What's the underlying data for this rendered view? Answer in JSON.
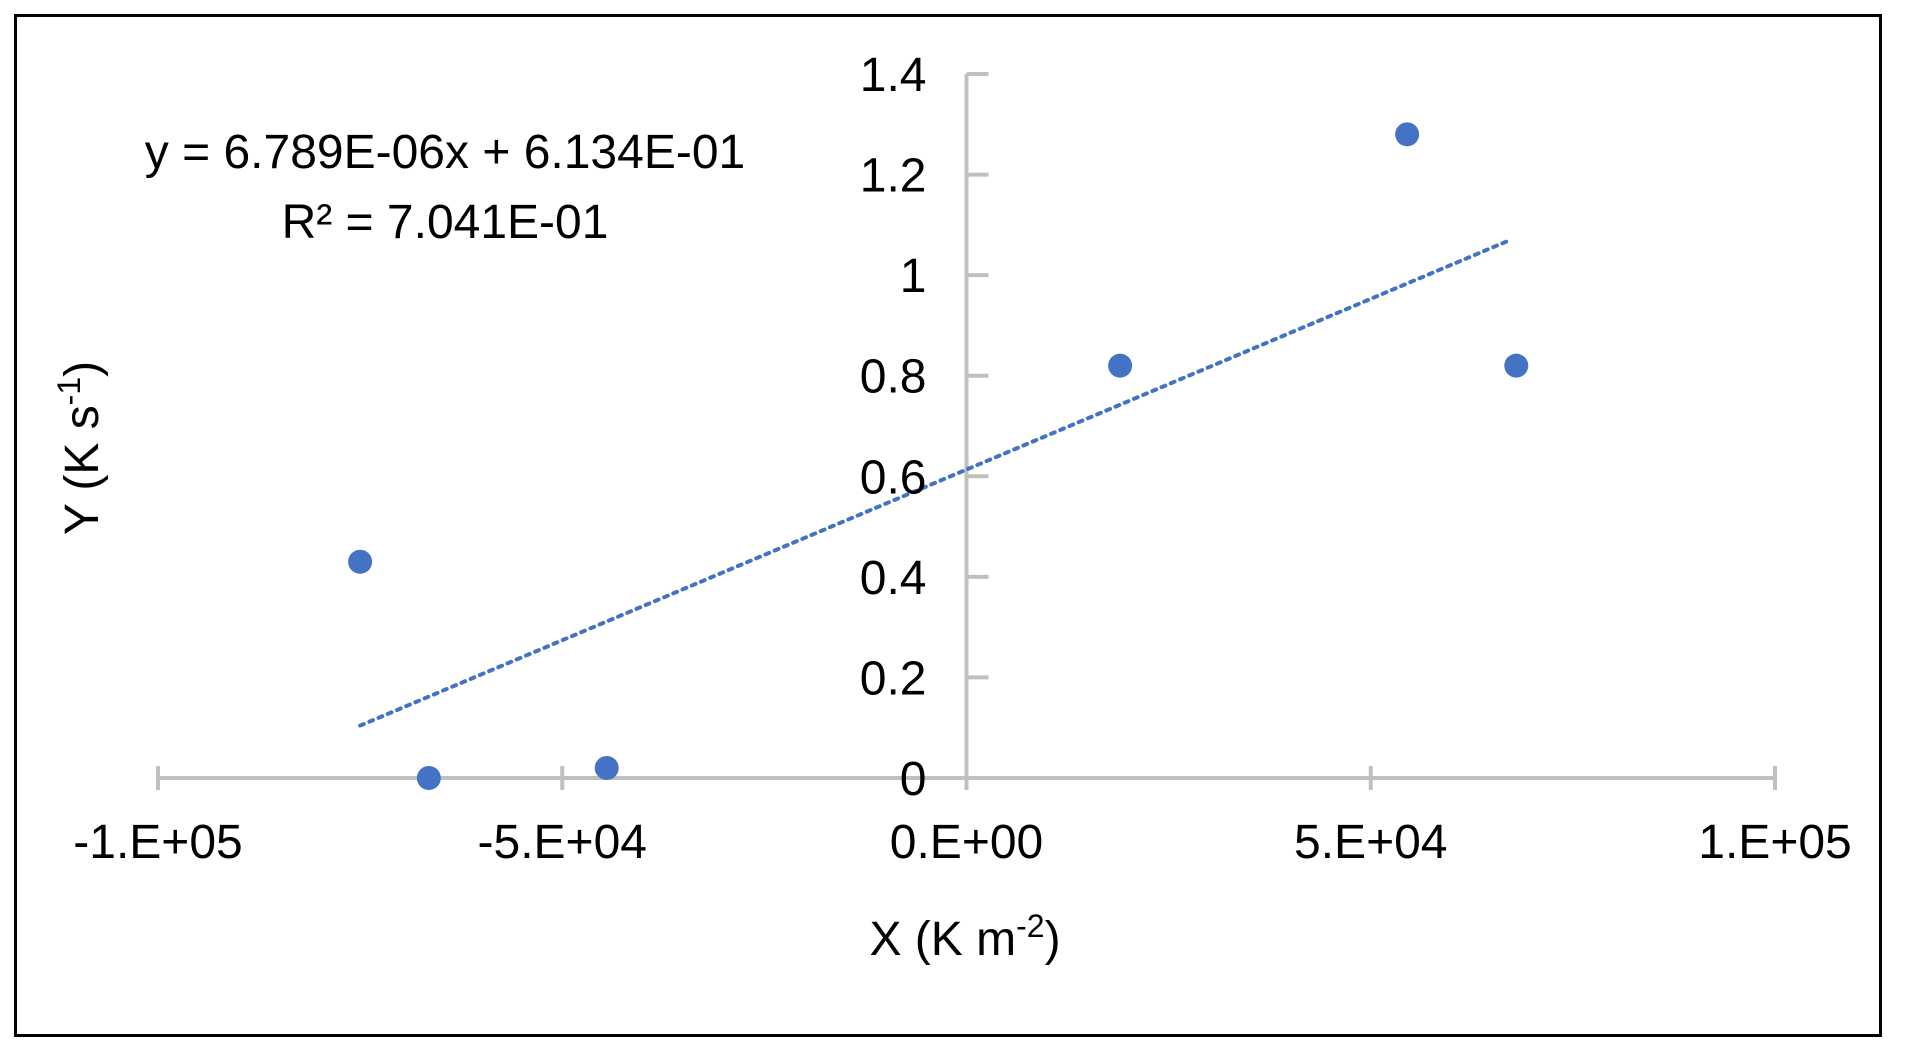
{
  "chart_data": {
    "type": "scatter",
    "title": "",
    "xlabel": "X (K m-2)",
    "xlabel_parts": {
      "base": "X (K m",
      "sup": "-2",
      "end": ")"
    },
    "ylabel": "Y (K s-1)",
    "ylabel_parts": {
      "base": "Y (K s",
      "sup": "-1",
      "end": ")"
    },
    "xlim": [
      -100000,
      100000
    ],
    "ylim": [
      0,
      1.4
    ],
    "x_ticks": [
      -100000,
      -50000,
      0,
      50000,
      100000
    ],
    "x_tick_labels": [
      "-1.E+05",
      "-5.E+04",
      "0.E+00",
      "5.E+04",
      "1.E+05"
    ],
    "y_ticks": [
      0,
      0.2,
      0.4,
      0.6,
      0.8,
      1.0,
      1.2,
      1.4
    ],
    "y_tick_labels": [
      "0",
      "0.2",
      "0.4",
      "0.6",
      "0.8",
      "1",
      "1.2",
      "1.4"
    ],
    "grid": false,
    "legend": "none",
    "series": [
      {
        "x": [
          -75000,
          -66500,
          -44500,
          19000,
          54500,
          68000
        ],
        "y": [
          0.43,
          0.0,
          0.02,
          0.82,
          1.28,
          0.82
        ],
        "color": "#4472C4"
      }
    ],
    "trendline": {
      "kind": "linear",
      "slope": 6.789e-06,
      "intercept": 0.6134,
      "x_range": [
        -75000,
        67000
      ],
      "color": "#4472C4",
      "style": "dotted"
    },
    "annotations": {
      "equation": "y = 6.789E-06x + 6.134E-01",
      "r_squared": "R² = 7.041E-01"
    },
    "axis_color": "#BFBFBF"
  }
}
